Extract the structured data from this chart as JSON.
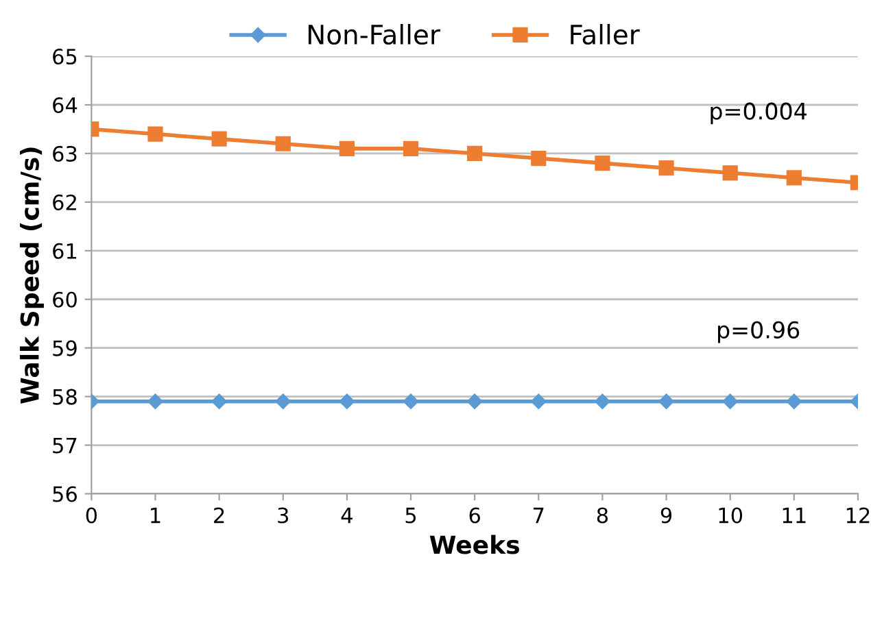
{
  "chart_data": {
    "type": "line",
    "xlabel": "Weeks",
    "ylabel": "Walk Speed (cm/s)",
    "x": [
      0,
      1,
      2,
      3,
      4,
      5,
      6,
      7,
      8,
      9,
      10,
      11,
      12
    ],
    "series": [
      {
        "name": "Non-Faller",
        "color": "#5b9bd5",
        "marker": "diamond",
        "values": [
          57.9,
          57.9,
          57.9,
          57.9,
          57.9,
          57.9,
          57.9,
          57.9,
          57.9,
          57.9,
          57.9,
          57.9,
          57.9
        ]
      },
      {
        "name": "Faller",
        "color": "#ed7d31",
        "marker": "square",
        "values": [
          63.5,
          63.4,
          63.3,
          63.2,
          63.1,
          63.1,
          63.0,
          62.9,
          62.8,
          62.7,
          62.6,
          62.5,
          62.4
        ]
      }
    ],
    "annotations": [
      "p=0.004",
      "p=0.96"
    ],
    "xlim": [
      0,
      12
    ],
    "xticks": [
      0,
      1,
      2,
      3,
      4,
      5,
      6,
      7,
      8,
      9,
      10,
      11,
      12
    ],
    "ylim": [
      56,
      65
    ],
    "yticks": [
      56,
      57,
      58,
      59,
      60,
      61,
      62,
      63,
      64,
      65
    ],
    "grid": "y",
    "legend": "top"
  }
}
